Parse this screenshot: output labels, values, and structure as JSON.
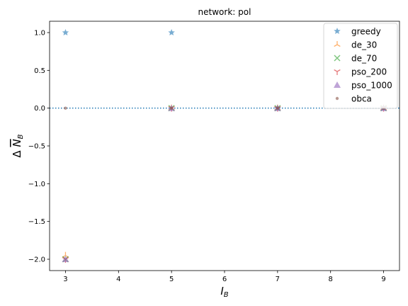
{
  "chart_data": {
    "type": "scatter",
    "title": "network: pol",
    "xlabel": "I",
    "xlabel_sub": "B",
    "ylabel": "Δ N",
    "ylabel_sub": "B",
    "xlim": [
      2.7,
      9.3
    ],
    "ylim": [
      -2.15,
      1.15
    ],
    "xticks": [
      3,
      4,
      5,
      6,
      7,
      8,
      9
    ],
    "yticks": [
      1.0,
      0.5,
      0.0,
      -0.5,
      -1.0,
      -1.5,
      -2.0
    ],
    "ytick_labels": [
      "1.0",
      "0.5",
      "0.0",
      "−0.5",
      "−1.0",
      "−1.5",
      "−2.0"
    ],
    "reference_line": {
      "y": 0,
      "style": "dotted",
      "color": "#1f77b4"
    },
    "legend_position": "top-right",
    "series": [
      {
        "name": "greedy",
        "marker": "star",
        "color": "#1f77b4",
        "x": [
          3,
          5,
          7,
          9
        ],
        "y": [
          1,
          1,
          0,
          0
        ]
      },
      {
        "name": "de_30",
        "marker": "tri",
        "color": "#ff7f0e",
        "x": [
          3,
          5,
          7,
          9
        ],
        "y": [
          -1.95,
          0,
          0,
          0
        ]
      },
      {
        "name": "de_70",
        "marker": "x",
        "color": "#2ca02c",
        "x": [
          3,
          5,
          7,
          9
        ],
        "y": [
          -2,
          0,
          0,
          0
        ]
      },
      {
        "name": "pso_200",
        "marker": "tri_down",
        "color": "#d62728",
        "x": [
          3,
          5,
          7,
          9
        ],
        "y": [
          -2,
          0,
          0,
          0
        ]
      },
      {
        "name": "pso_1000",
        "marker": "triangle",
        "color": "#9467bd",
        "x": [
          3,
          5,
          7,
          9
        ],
        "y": [
          -2,
          0,
          0,
          0
        ]
      },
      {
        "name": "obca",
        "marker": "dot",
        "color": "#8c564b",
        "x": [
          3,
          5,
          7,
          9
        ],
        "y": [
          0,
          0,
          0,
          0
        ]
      }
    ]
  }
}
